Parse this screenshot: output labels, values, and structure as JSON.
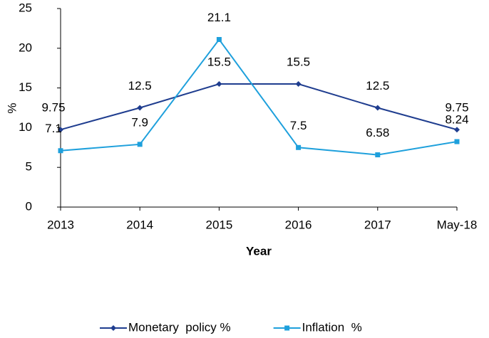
{
  "chart_data": {
    "type": "line",
    "categories": [
      "2013",
      "2014",
      "2015",
      "2016",
      "2017",
      "May-18"
    ],
    "series": [
      {
        "name": "Monetary  policy %",
        "color": "#1f3d8f",
        "marker": "diamond",
        "values": [
          9.75,
          12.5,
          15.5,
          15.5,
          12.5,
          9.75
        ]
      },
      {
        "name": "Inflation  %",
        "color": "#1ea0dc",
        "marker": "square",
        "values": [
          7.1,
          7.9,
          21.1,
          7.5,
          6.58,
          8.24
        ]
      }
    ],
    "ylabel": "%",
    "xlabel": "Year",
    "ylim": [
      0,
      25
    ],
    "yticks": [
      0,
      5,
      10,
      15,
      20,
      25
    ],
    "legend": "bottom"
  }
}
